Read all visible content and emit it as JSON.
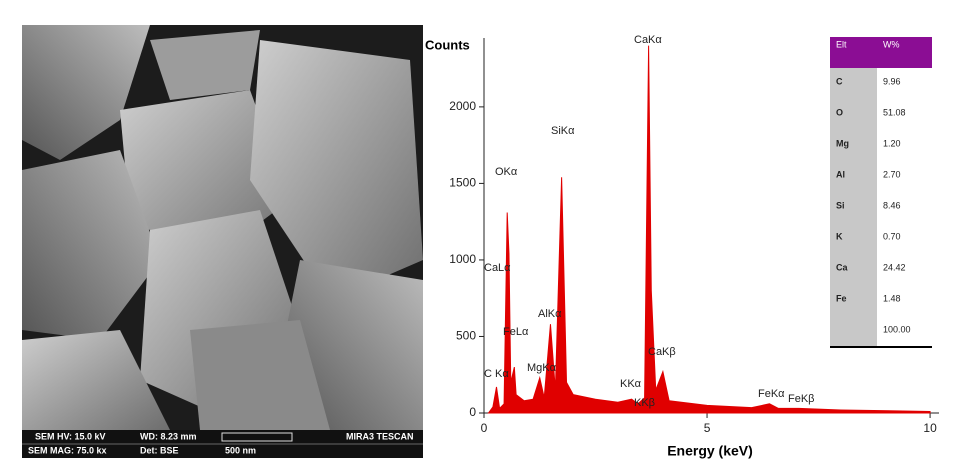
{
  "image_info": {
    "hv": "SEM HV: 15.0 kV",
    "wd": "WD: 8.23 mm",
    "maker": "MIRA3 TESCAN",
    "mag": "SEM MAG: 75.0 kx",
    "det": "Det: BSE",
    "scale": "500 nm"
  },
  "chart_data": {
    "type": "area",
    "y_label": "Counts",
    "x_label": "Energy (keV)",
    "color": "#e00000",
    "x": [
      0.1,
      0.2,
      0.28,
      0.35,
      0.45,
      0.52,
      0.56,
      0.6,
      0.68,
      0.72,
      0.9,
      1.1,
      1.25,
      1.35,
      1.49,
      1.6,
      1.74,
      1.85,
      2.0,
      2.5,
      3.0,
      3.31,
      3.45,
      3.6,
      3.69,
      3.75,
      3.85,
      4.01,
      4.15,
      5.0,
      6.0,
      6.4,
      6.6,
      7.06,
      8.0,
      10.0
    ],
    "values": [
      0,
      40,
      170,
      30,
      60,
      1310,
      1040,
      200,
      300,
      120,
      80,
      90,
      230,
      100,
      580,
      150,
      1540,
      200,
      120,
      90,
      70,
      90,
      60,
      100,
      2400,
      800,
      150,
      270,
      80,
      50,
      35,
      60,
      30,
      30,
      20,
      10
    ],
    "xlim": [
      0,
      10.2
    ],
    "ylim": [
      0,
      2450
    ],
    "xticks": [
      0,
      5,
      10
    ],
    "yticks": [
      0,
      500,
      1000,
      1500,
      2000
    ],
    "annotations": [
      "CaKα",
      "SiKα",
      "OKα",
      "CaLα",
      "AlKα",
      "FeLα",
      "MgKα",
      "C Kα",
      "KKα",
      "KKβ",
      "CaKβ",
      "FeKα",
      "FeKβ"
    ]
  },
  "table": {
    "header": [
      "Elt",
      "W%"
    ],
    "rows": [
      [
        "C",
        "9.96"
      ],
      [
        "O",
        "51.08"
      ],
      [
        "Mg",
        "1.20"
      ],
      [
        "Al",
        "2.70"
      ],
      [
        "Si",
        "8.46"
      ],
      [
        "K",
        "0.70"
      ],
      [
        "Ca",
        "24.42"
      ],
      [
        "Fe",
        "1.48"
      ]
    ],
    "total": "100.00"
  }
}
